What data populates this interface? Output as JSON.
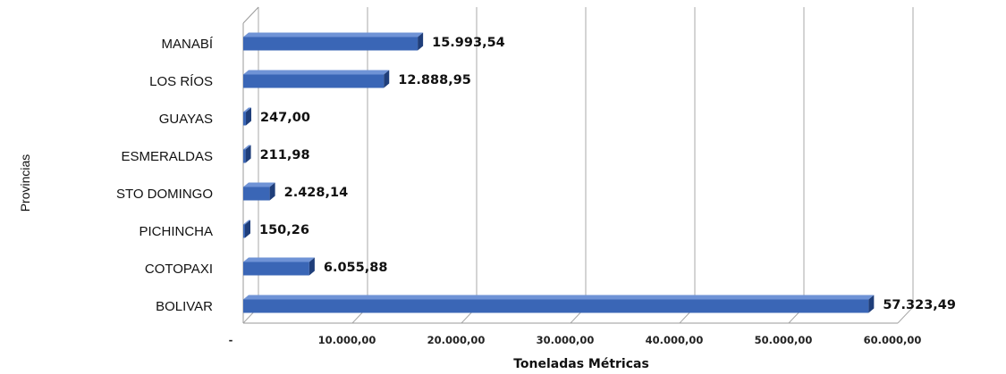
{
  "chart_data": {
    "type": "bar",
    "orientation": "horizontal",
    "categories": [
      "MANABÍ",
      "LOS RÍOS",
      "GUAYAS",
      "ESMERALDAS",
      "STO DOMINGO",
      "PICHINCHA",
      "COTOPAXI",
      "BOLIVAR"
    ],
    "values": [
      15993.54,
      12888.95,
      247.0,
      211.98,
      2428.14,
      150.26,
      6055.88,
      57323.49
    ],
    "value_labels": [
      "15.993,54",
      "12.888,95",
      "247,00",
      "211,98",
      "2.428,14",
      "150,26",
      "6.055,88",
      "57.323,49"
    ],
    "x_ticks": [
      0,
      10000,
      20000,
      30000,
      40000,
      50000,
      60000
    ],
    "x_tick_labels": [
      "-",
      "10.000,00",
      "20.000,00",
      "30.000,00",
      "40.000,00",
      "50.000,00",
      "60.000,00"
    ],
    "xlim": [
      0,
      60000
    ],
    "xlabel": "Toneladas Métricas",
    "ylabel": "Provincias",
    "grid": "vertical",
    "bar_color": "#3a66b6",
    "bar_side_color": "#1f3e7a",
    "bar_top_color": "#6f93d6"
  }
}
